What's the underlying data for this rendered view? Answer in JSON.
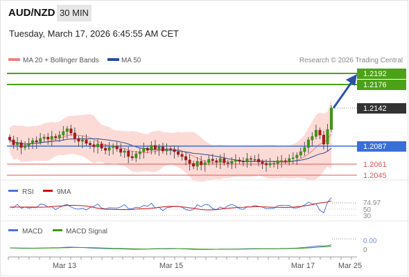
{
  "header": {
    "pair": "AUD/NZD",
    "timeframe": "30 MIN",
    "datetime": "Tuesday, March 17, 2026 6:45:55 AM CET"
  },
  "legend": {
    "ma20": "MA 20 + Bollinger Bands",
    "ma50": "MA 50",
    "ma20_color": "#f08080",
    "ma50_color": "#2a4d8f",
    "credit": "Research © 2026 Trading Central"
  },
  "levels": [
    {
      "label": "1.2192",
      "value": 1.2192,
      "kind": "target",
      "color": "#4ca217"
    },
    {
      "label": "1.2176",
      "value": 1.2176,
      "kind": "target",
      "color": "#4ca217"
    },
    {
      "label": "1.2142",
      "value": 1.2142,
      "kind": "last",
      "color": "#333333"
    },
    {
      "label": "1.2087",
      "value": 1.2087,
      "kind": "pivot",
      "color": "#3a6fd8"
    },
    {
      "label": "1.2061",
      "value": 1.2061,
      "kind": "support",
      "color": "#e05555"
    },
    {
      "label": "1.2045",
      "value": 1.2045,
      "kind": "support",
      "color": "#e05555"
    }
  ],
  "rsi": {
    "legend": [
      "RSI",
      "9MA"
    ],
    "colors": [
      "#4a72d8",
      "#cc1111"
    ],
    "current": "74.97",
    "ticks": [
      "50",
      "30"
    ]
  },
  "macd": {
    "legend": [
      "MACD",
      "MACD Signal"
    ],
    "colors": [
      "#4a72d8",
      "#3a9a10"
    ],
    "current": "0.00",
    "ticks": [
      "0"
    ]
  },
  "xaxis": {
    "labels": [
      "Mar 13",
      "Mar 15",
      "Mar 17",
      "Mar 25"
    ]
  },
  "chart_data": {
    "type": "candlestick",
    "symbol": "AUD/NZD",
    "interval": "30 MIN",
    "y_range": [
      1.204,
      1.22
    ],
    "x_labels": [
      "Mar 13",
      "Mar 15",
      "Mar 17",
      "Mar 25"
    ],
    "closes": [
      1.2096,
      1.2089,
      1.2092,
      1.2085,
      1.2088,
      1.2091,
      1.2095,
      1.2093,
      1.2098,
      1.21,
      1.2097,
      1.2101,
      1.2099,
      1.2103,
      1.2108,
      1.2112,
      1.2106,
      1.2098,
      1.2094,
      1.2096,
      1.2091,
      1.2089,
      1.2086,
      1.209,
      1.2084,
      1.2081,
      1.2085,
      1.2087,
      1.2083,
      1.2078,
      1.208,
      1.2072,
      1.207,
      1.2076,
      1.2079,
      1.2084,
      1.2081,
      1.2088,
      1.2083,
      1.2086,
      1.208,
      1.2083,
      1.2082,
      1.2079,
      1.2075,
      1.2072,
      1.2067,
      1.2062,
      1.2058,
      1.2065,
      1.206,
      1.2063,
      1.2068,
      1.2066,
      1.2064,
      1.2069,
      1.2063,
      1.2062,
      1.2065,
      1.2067,
      1.2065,
      1.2064,
      1.2069,
      1.2068,
      1.2068,
      1.2064,
      1.2062,
      1.206,
      1.2062,
      1.2062,
      1.2066,
      1.2066,
      1.2065,
      1.2069,
      1.207,
      1.2074,
      1.2079,
      1.2085,
      1.2096,
      1.2101,
      1.211,
      1.2103,
      1.209,
      1.2111,
      1.2142
    ],
    "rsi_last": 74.97,
    "macd_last": 0.0
  }
}
